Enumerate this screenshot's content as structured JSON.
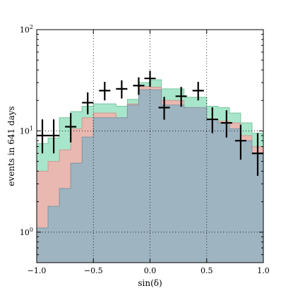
{
  "chart_data": {
    "type": "area",
    "xlabel": "sin(δ)",
    "ylabel": "events in 641 days",
    "yscale": "log",
    "xlim": [
      -1.0,
      1.0
    ],
    "ylim": [
      0.5,
      100
    ],
    "grid": "dotted, at major ticks",
    "x_ticks": [
      -1.0,
      -0.5,
      0.0,
      0.5,
      1.0
    ],
    "x_tick_labels": [
      "−1.0",
      "−0.5",
      "0.0",
      "0.5",
      "1.0"
    ],
    "y_ticks": [
      1,
      10,
      100
    ],
    "y_tick_labels": [
      {
        "base": "10",
        "exp": "0"
      },
      {
        "base": "10",
        "exp": "1"
      },
      {
        "base": "10",
        "exp": "2"
      }
    ],
    "bin_edges": [
      -1.0,
      -0.9,
      -0.8,
      -0.7,
      -0.6,
      -0.5,
      -0.4,
      -0.3,
      -0.2,
      -0.1,
      0.0,
      0.1,
      0.2,
      0.3,
      0.4,
      0.5,
      0.6,
      0.7,
      0.8,
      0.9,
      1.0
    ],
    "series": [
      {
        "role": "stack-top",
        "color": "#a8e6cb",
        "edge": "#74c79c",
        "values": [
          7.5,
          8.5,
          13.5,
          15.5,
          17.5,
          18.5,
          18.5,
          17.5,
          20.5,
          30.0,
          32.0,
          26.0,
          26.0,
          21.5,
          21.5,
          17.5,
          17.0,
          15.0,
          12.0,
          9.5
        ]
      },
      {
        "role": "stack-middle",
        "color": "#e9b8b0",
        "edge": "#c99a92",
        "values": [
          4.0,
          5.0,
          6.5,
          10.5,
          13.5,
          15.0,
          15.0,
          13.5,
          18.5,
          27.5,
          27.0,
          20.0,
          20.0,
          17.0,
          17.0,
          13.0,
          12.5,
          12.0,
          9.0,
          7.0
        ]
      },
      {
        "role": "stack-bottom",
        "color": "#9fb4c1",
        "edge": "#7f95a3",
        "values": [
          1.1,
          1.8,
          2.7,
          4.8,
          8.7,
          13.5,
          13.5,
          13.5,
          18.0,
          25.5,
          25.5,
          18.0,
          18.0,
          17.0,
          17.0,
          13.0,
          12.0,
          10.5,
          8.0,
          6.0
        ]
      }
    ],
    "data_points": {
      "color": "#000000",
      "x": [
        -0.95,
        -0.85,
        -0.7,
        -0.55,
        -0.4,
        -0.25,
        -0.1,
        0.0,
        0.125,
        0.275,
        0.425,
        0.55,
        0.675,
        0.8,
        0.95
      ],
      "y": [
        9.0,
        9.0,
        11.0,
        19.0,
        25.0,
        26.0,
        28.0,
        33.0,
        17.0,
        22.0,
        25.0,
        13.0,
        12.0,
        8.0,
        6.0
      ],
      "x_half_width": [
        0.05,
        0.05,
        0.05,
        0.05,
        0.05,
        0.05,
        0.05,
        0.05,
        0.05,
        0.05,
        0.05,
        0.05,
        0.05,
        0.05,
        0.05
      ],
      "y_low": [
        6.0,
        6.0,
        7.7,
        14.6,
        20.0,
        20.9,
        22.7,
        27.3,
        12.9,
        17.3,
        20.0,
        9.5,
        8.6,
        5.2,
        3.6
      ],
      "y_high": [
        13.0,
        13.0,
        15.0,
        24.0,
        30.5,
        31.6,
        33.8,
        39.2,
        21.7,
        27.2,
        30.5,
        17.1,
        16.0,
        11.5,
        9.5
      ]
    }
  }
}
